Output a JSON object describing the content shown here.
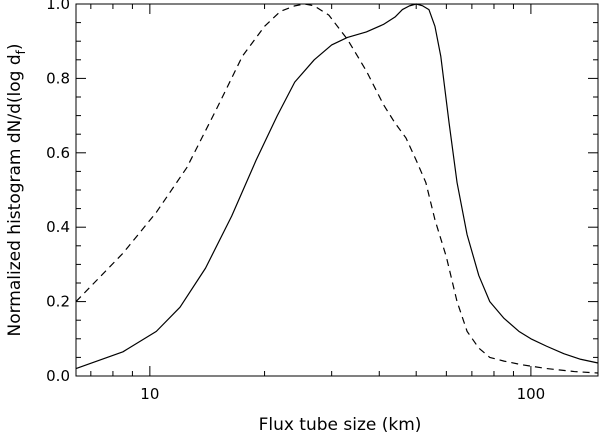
{
  "chart_data": {
    "type": "line",
    "xscale": "log",
    "xlim": [
      6.4,
      150
    ],
    "ylim": [
      0.0,
      1.0
    ],
    "xlabel": "Flux tube size (km)",
    "ylabel": "Normalized histogram dN/d(log d",
    "ylabel_subscript": "f",
    "ylabel_suffix": ")",
    "xticks": [
      10,
      100
    ],
    "xtick_labels": [
      "10",
      "100"
    ],
    "yticks": [
      0.0,
      0.2,
      0.4,
      0.6,
      0.8,
      1.0
    ],
    "ytick_labels": [
      "0.0",
      "0.2",
      "0.4",
      "0.6",
      "0.8",
      "1.0"
    ],
    "series": [
      {
        "style": "solid",
        "x": [
          6.4,
          8.5,
          10.4,
          12.0,
          14.0,
          16.4,
          19.0,
          21.6,
          24.0,
          27.0,
          30.0,
          33.0,
          37.0,
          41.0,
          44.0,
          46.0,
          48.0,
          50.0,
          52.0,
          54.0,
          56.0,
          58.0,
          61.0,
          64.0,
          68.0,
          73.0,
          78.0,
          85.0,
          93.0,
          100.0,
          110.0,
          122.0,
          135.0,
          150.0
        ],
        "y": [
          0.02,
          0.065,
          0.12,
          0.185,
          0.29,
          0.43,
          0.58,
          0.7,
          0.79,
          0.85,
          0.89,
          0.91,
          0.925,
          0.945,
          0.965,
          0.985,
          0.995,
          1.0,
          0.995,
          0.985,
          0.94,
          0.86,
          0.68,
          0.52,
          0.38,
          0.27,
          0.2,
          0.155,
          0.12,
          0.1,
          0.08,
          0.06,
          0.045,
          0.035
        ]
      },
      {
        "style": "dashed",
        "x": [
          6.4,
          8.5,
          10.4,
          12.5,
          15.0,
          17.5,
          20.0,
          22.0,
          24.0,
          25.5,
          27.0,
          29.5,
          33.0,
          37.0,
          41.0,
          44.0,
          47.0,
          50.0,
          53.0,
          56.0,
          60.0,
          64.0,
          68.0,
          73.0,
          78.0,
          85.0,
          95.0,
          110.0,
          130.0,
          150.0
        ],
        "y": [
          0.2,
          0.33,
          0.44,
          0.56,
          0.72,
          0.86,
          0.94,
          0.98,
          0.995,
          1.0,
          0.995,
          0.97,
          0.905,
          0.82,
          0.73,
          0.68,
          0.64,
          0.58,
          0.52,
          0.42,
          0.32,
          0.2,
          0.12,
          0.075,
          0.05,
          0.04,
          0.03,
          0.02,
          0.012,
          0.008
        ]
      }
    ]
  }
}
